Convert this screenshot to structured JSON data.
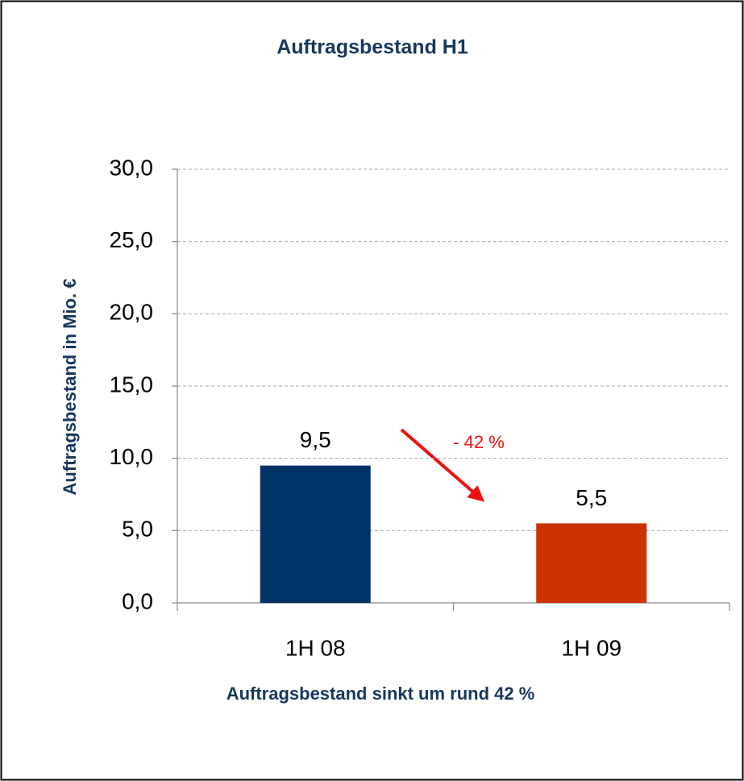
{
  "chart_data": {
    "type": "bar",
    "title": "Auftragsbestand H1",
    "y_label": "Auftragsbestand in Mio. €",
    "x_label": "Auftragsbestand sinkt um rund 42 %",
    "annotation": "- 42 %",
    "categories": [
      "1H 08",
      "1H 09"
    ],
    "values": [
      9.5,
      5.5
    ],
    "value_labels": [
      "9,5",
      "5,5"
    ],
    "colors": [
      "#003366",
      "#cc3300"
    ],
    "ylim": [
      0,
      30
    ],
    "yticks": [
      {
        "value": 0,
        "label": "0,0"
      },
      {
        "value": 5,
        "label": "5,0"
      },
      {
        "value": 10,
        "label": "10,0"
      },
      {
        "value": 15,
        "label": "15,0"
      },
      {
        "value": 20,
        "label": "20,0"
      },
      {
        "value": 25,
        "label": "25,0"
      },
      {
        "value": 30,
        "label": "30,0"
      }
    ],
    "grid": true
  }
}
